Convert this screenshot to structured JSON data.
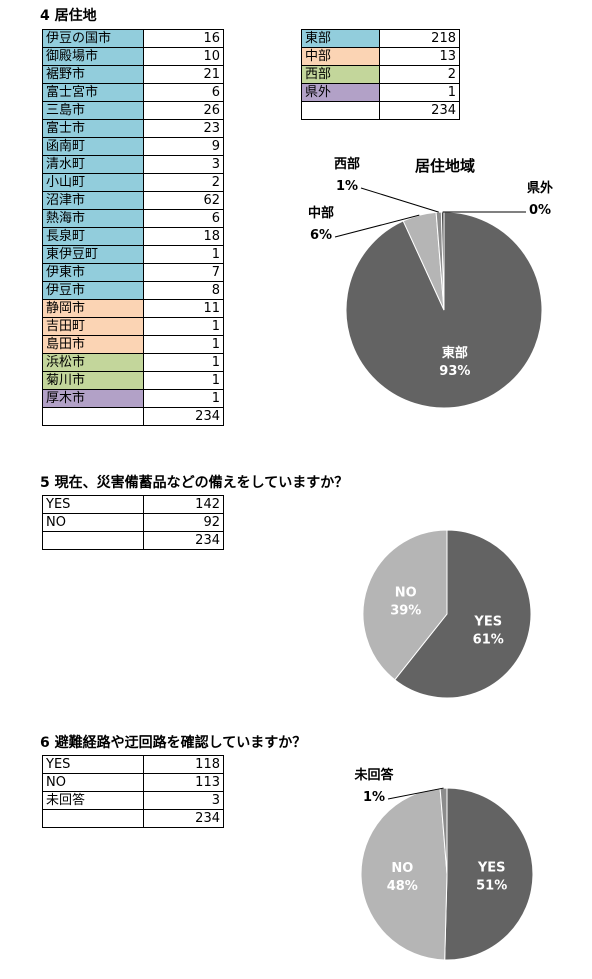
{
  "colors": {
    "east": "#92cddc",
    "central": "#fbd4b4",
    "west": "#c3d69b",
    "outside": "#b2a1c7"
  },
  "q4": {
    "heading": "4 居住地",
    "cities": [
      {
        "name": "伊豆の国市",
        "count": "16",
        "region": "east"
      },
      {
        "name": "御殿場市",
        "count": "10",
        "region": "east"
      },
      {
        "name": "裾野市",
        "count": "21",
        "region": "east"
      },
      {
        "name": "富士宮市",
        "count": "6",
        "region": "east"
      },
      {
        "name": "三島市",
        "count": "26",
        "region": "east"
      },
      {
        "name": "富士市",
        "count": "23",
        "region": "east"
      },
      {
        "name": "函南町",
        "count": "9",
        "region": "east"
      },
      {
        "name": "清水町",
        "count": "3",
        "region": "east"
      },
      {
        "name": "小山町",
        "count": "2",
        "region": "east"
      },
      {
        "name": "沼津市",
        "count": "62",
        "region": "east"
      },
      {
        "name": "熱海市",
        "count": "6",
        "region": "east"
      },
      {
        "name": "長泉町",
        "count": "18",
        "region": "east"
      },
      {
        "name": "東伊豆町",
        "count": "1",
        "region": "east"
      },
      {
        "name": "伊東市",
        "count": "7",
        "region": "east"
      },
      {
        "name": "伊豆市",
        "count": "8",
        "region": "east"
      },
      {
        "name": "静岡市",
        "count": "11",
        "region": "central"
      },
      {
        "name": "吉田町",
        "count": "1",
        "region": "central"
      },
      {
        "name": "島田市",
        "count": "1",
        "region": "central"
      },
      {
        "name": "浜松市",
        "count": "1",
        "region": "west"
      },
      {
        "name": "菊川市",
        "count": "1",
        "region": "west"
      },
      {
        "name": "厚木市",
        "count": "1",
        "region": "outside"
      }
    ],
    "total": "234",
    "regions": [
      {
        "name": "東部",
        "count": "218",
        "region": "east"
      },
      {
        "name": "中部",
        "count": "13",
        "region": "central"
      },
      {
        "name": "西部",
        "count": "2",
        "region": "west"
      },
      {
        "name": "県外",
        "count": "1",
        "region": "outside"
      }
    ],
    "regions_total": "234"
  },
  "q5": {
    "heading": "5 現在、災害備蓄品などの備えをしていますか？",
    "rows": [
      {
        "label": "YES",
        "count": "142"
      },
      {
        "label": "NO",
        "count": "92"
      }
    ],
    "total": "234"
  },
  "q6": {
    "heading": "6 避難経路や迂回路を確認していますか？",
    "rows": [
      {
        "label": "YES",
        "count": "118"
      },
      {
        "label": "NO",
        "count": "113"
      },
      {
        "label": "未回答",
        "count": "3"
      }
    ],
    "total": "234"
  },
  "chart_data": [
    {
      "type": "pie",
      "title": "居住地域",
      "series": [
        {
          "name": "東部",
          "value": 218,
          "label": "93%",
          "color": "#636363"
        },
        {
          "name": "中部",
          "value": 13,
          "label": "6%",
          "color": "#b5b5b5"
        },
        {
          "name": "西部",
          "value": 2,
          "label": "1%",
          "color": "#8c8c8c"
        },
        {
          "name": "県外",
          "value": 1,
          "label": "0%",
          "color": "#4a4a4a"
        }
      ]
    },
    {
      "type": "pie",
      "title": "",
      "series": [
        {
          "name": "YES",
          "value": 142,
          "label": "61%",
          "color": "#636363"
        },
        {
          "name": "NO",
          "value": 92,
          "label": "39%",
          "color": "#b5b5b5"
        }
      ]
    },
    {
      "type": "pie",
      "title": "",
      "series": [
        {
          "name": "YES",
          "value": 118,
          "label": "51%",
          "color": "#636363"
        },
        {
          "name": "NO",
          "value": 113,
          "label": "48%",
          "color": "#b5b5b5"
        },
        {
          "name": "未回答",
          "value": 3,
          "label": "1%",
          "color": "#8c8c8c"
        }
      ]
    }
  ]
}
